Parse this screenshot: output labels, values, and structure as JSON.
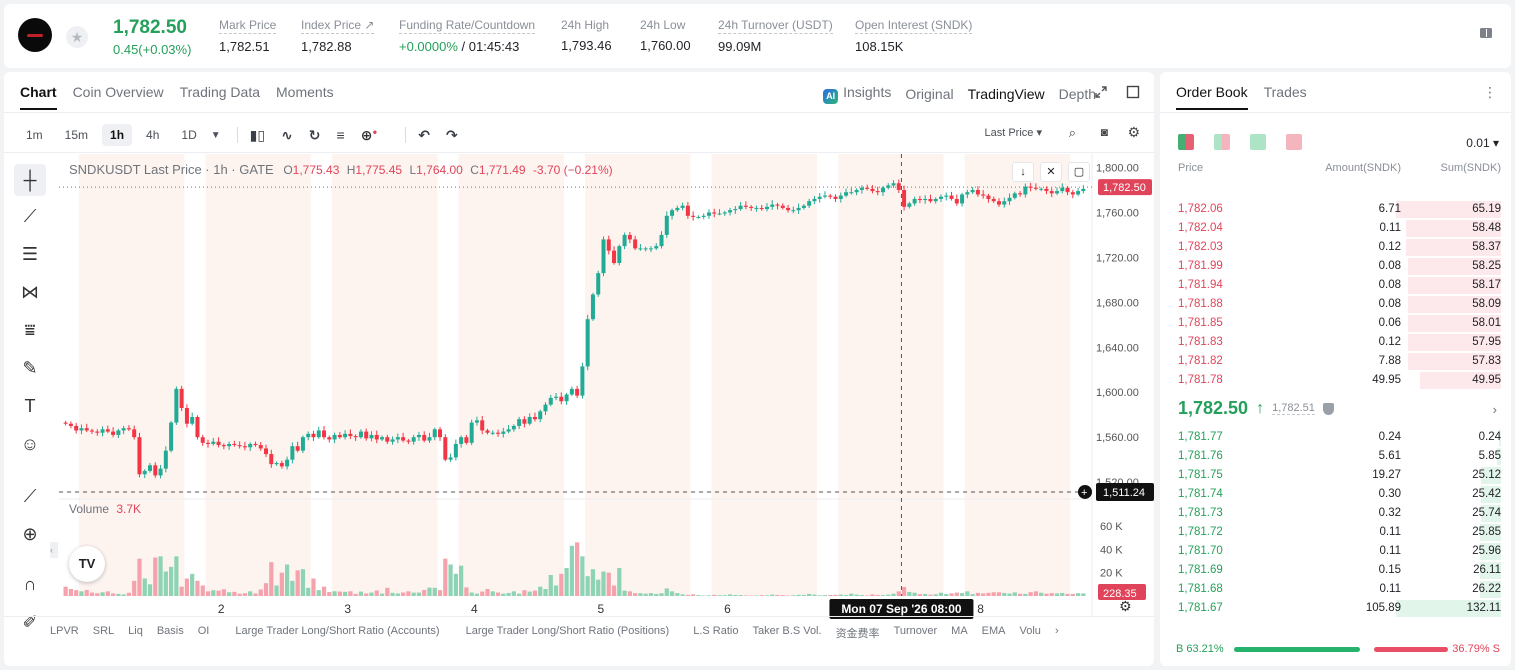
{
  "header": {
    "last_price": "1,782.50",
    "change": "0.45(+0.03%)",
    "stats": [
      {
        "label": "Mark Price",
        "value": "1,782.51"
      },
      {
        "label": "Index Price ↗",
        "value": "1,782.88"
      },
      {
        "label": "Funding Rate/Countdown",
        "value_green": "+0.0000%",
        "value": " / 01:45:43"
      },
      {
        "label": "24h High",
        "value": "1,793.46"
      },
      {
        "label": "24h Low",
        "value": "1,760.00"
      },
      {
        "label": "24h Turnover (USDT)",
        "value": "99.09M"
      },
      {
        "label": "Open Interest (SNDK)",
        "value": "108.15K"
      }
    ]
  },
  "chart_panel": {
    "tabs": [
      "Chart",
      "Coin Overview",
      "Trading Data",
      "Moments"
    ],
    "view_tabs": [
      "Insights",
      "Original",
      "TradingView",
      "Depth"
    ],
    "intervals": [
      "1m",
      "15m",
      "1h",
      "4h",
      "1D"
    ],
    "price_type": "Last Price ▾",
    "legend": {
      "symbol": "SNDKUSDT Last Price · 1h · GATE",
      "o_label": "O",
      "o": "1,775.43",
      "h_label": "H",
      "h": "1,775.45",
      "l_label": "L",
      "l": "1,764.00",
      "c_label": "C",
      "c": "1,771.49",
      "chg": "-3.70 (−0.21%)"
    },
    "volume_label": "Volume",
    "volume_value": "3.7K",
    "last_price_tag": "1,782.50",
    "cursor_price_tag": "1,511.24",
    "volume_tag": "228.35",
    "cursor_time": "Mon 07 Sep '26   08:00",
    "bottom_links": [
      "LPVR",
      "SRL",
      "Liq",
      "Basis",
      "OI",
      "Large Trader Long/Short Ratio (Accounts)",
      "Large Trader Long/Short Ratio (Positions)",
      "L.S Ratio",
      "Taker B.S Vol.",
      "资金费率",
      "Turnover",
      "MA",
      "EMA",
      "Volu"
    ]
  },
  "chart_data": {
    "type": "candlestick",
    "interval": "1h",
    "x_ticks": [
      "2",
      "3",
      "4",
      "5",
      "6",
      "8"
    ],
    "price_ticks": [
      1800,
      1760,
      1720,
      1680,
      1640,
      1600,
      1560,
      1520
    ],
    "volume_ticks": [
      "60 K",
      "40 K",
      "20 K"
    ],
    "ylim": [
      1505,
      1812
    ],
    "volume_max": 60000,
    "up_color": "#22ab94",
    "down_color": "#f23645",
    "closes": [
      1572,
      1570,
      1566,
      1568,
      1566,
      1565,
      1564,
      1567,
      1565,
      1562,
      1566,
      1568,
      1567,
      1560,
      1527,
      1530,
      1535,
      1526,
      1532,
      1548,
      1573,
      1603,
      1586,
      1572,
      1578,
      1560,
      1555,
      1554,
      1556,
      1553,
      1552,
      1554,
      1553,
      1552,
      1551,
      1554,
      1553,
      1550,
      1545,
      1536,
      1537,
      1534,
      1540,
      1552,
      1548,
      1560,
      1563,
      1560,
      1566,
      1560,
      1558,
      1562,
      1560,
      1563,
      1561,
      1560,
      1565,
      1559,
      1562,
      1558,
      1560,
      1556,
      1558,
      1560,
      1557,
      1556,
      1560,
      1562,
      1557,
      1560,
      1567,
      1560,
      1540,
      1542,
      1554,
      1560,
      1555,
      1573,
      1575,
      1566,
      1564,
      1564,
      1563,
      1565,
      1567,
      1570,
      1576,
      1572,
      1578,
      1576,
      1583,
      1589,
      1595,
      1596,
      1592,
      1598,
      1603,
      1597,
      1623,
      1665,
      1687,
      1706,
      1736,
      1726,
      1715,
      1730,
      1740,
      1736,
      1728,
      1728,
      1728,
      1728,
      1730,
      1740,
      1757,
      1762,
      1764,
      1766,
      1757,
      1756,
      1756,
      1757,
      1760,
      1759,
      1759,
      1760,
      1762,
      1763,
      1766,
      1765,
      1764,
      1764,
      1763,
      1765,
      1767,
      1766,
      1764,
      1762,
      1762,
      1764,
      1766,
      1770,
      1772,
      1774,
      1775,
      1774,
      1772,
      1775,
      1778,
      1778,
      1780,
      1782,
      1781,
      1779,
      1778,
      1782,
      1784,
      1786,
      1780,
      1765,
      1768,
      1772,
      1771,
      1772,
      1770,
      1772,
      1774,
      1775,
      1772,
      1768,
      1776,
      1778,
      1780,
      1776,
      1775,
      1772,
      1770,
      1767,
      1770,
      1773,
      1777,
      1776,
      1783,
      1782,
      1781,
      1781,
      1779,
      1777,
      1779,
      1782,
      1778,
      1776,
      1779,
      1781
    ],
    "volumes": [
      8000,
      6000,
      5000,
      4000,
      5200,
      3000,
      2400,
      3200,
      4000,
      2200,
      1800,
      1400,
      2800,
      13000,
      32000,
      15000,
      10000,
      33000,
      34000,
      21000,
      25000,
      34000,
      8000,
      15000,
      19000,
      13000,
      9000,
      4000,
      5000,
      4600,
      5800,
      3200,
      3600,
      2000,
      2400,
      4000,
      2200,
      5600,
      11000,
      29000,
      9000,
      20000,
      27000,
      13000,
      22000,
      23000,
      7000,
      15000,
      5000,
      8000,
      3400,
      4100,
      3800,
      3600,
      4000,
      1800,
      3800,
      2200,
      3000,
      4700,
      2000,
      7000,
      2700,
      2200,
      3000,
      4000,
      2900,
      3000,
      5200,
      7200,
      7000,
      5000,
      32000,
      27000,
      19000,
      26000,
      7400,
      3000,
      2000,
      3800,
      6000,
      4000,
      3000,
      2000,
      2600,
      4000,
      2000,
      5000,
      3800,
      4600,
      8000,
      6000,
      18000,
      9000,
      19000,
      24000,
      43000,
      46000,
      34000,
      17000,
      23000,
      14000,
      21000,
      20000,
      9000,
      24000,
      4600,
      4000,
      2400,
      2400,
      2000,
      2500,
      1800,
      2400,
      6500,
      4000,
      2500,
      1400,
      900,
      1500,
      800,
      400,
      600,
      1000,
      700,
      700,
      1400,
      900,
      800,
      500,
      400,
      500,
      800,
      600,
      1200,
      900,
      700,
      400,
      600,
      1000,
      900,
      1800,
      1200,
      600,
      800,
      800,
      1000,
      1300,
      900,
      2000,
      1200,
      800,
      500,
      1400,
      900,
      800,
      1200,
      2000,
      4000,
      7800,
      3500,
      2800,
      1600,
      1800,
      1100,
      1500,
      2800,
      1700,
      2300,
      2900,
      2500,
      4000,
      1600,
      2700,
      2200,
      2700,
      3200,
      3200,
      2600,
      2100,
      3100,
      1900,
      1800,
      3300,
      4000,
      2800,
      2000,
      2500,
      2200,
      2600,
      1800,
      1800,
      2400,
      2200
    ]
  },
  "order_book": {
    "tabs": [
      "Order Book",
      "Trades"
    ],
    "tick": "0.01 ▾",
    "headers": {
      "price": "Price",
      "amount": "Amount(SNDK)",
      "sum": "Sum(SNDK)"
    },
    "asks": [
      {
        "price": "1,782.06",
        "amount": "6.71",
        "sum": "65.19",
        "depth": 1.0
      },
      {
        "price": "1,782.04",
        "amount": "0.11",
        "sum": "58.48",
        "depth": 0.9
      },
      {
        "price": "1,782.03",
        "amount": "0.12",
        "sum": "58.37",
        "depth": 0.9
      },
      {
        "price": "1,781.99",
        "amount": "0.08",
        "sum": "58.25",
        "depth": 0.89
      },
      {
        "price": "1,781.94",
        "amount": "0.08",
        "sum": "58.17",
        "depth": 0.89
      },
      {
        "price": "1,781.88",
        "amount": "0.08",
        "sum": "58.09",
        "depth": 0.89
      },
      {
        "price": "1,781.85",
        "amount": "0.06",
        "sum": "58.01",
        "depth": 0.89
      },
      {
        "price": "1,781.83",
        "amount": "0.12",
        "sum": "57.95",
        "depth": 0.89
      },
      {
        "price": "1,781.82",
        "amount": "7.88",
        "sum": "57.83",
        "depth": 0.89
      },
      {
        "price": "1,781.78",
        "amount": "49.95",
        "sum": "49.95",
        "depth": 0.77
      }
    ],
    "mid": {
      "price": "1,782.50",
      "arrow": "↑",
      "mark": "1,782.51"
    },
    "bids": [
      {
        "price": "1,781.77",
        "amount": "0.24",
        "sum": "0.24",
        "depth": 0.002
      },
      {
        "price": "1,781.76",
        "amount": "5.61",
        "sum": "5.85",
        "depth": 0.04
      },
      {
        "price": "1,781.75",
        "amount": "19.27",
        "sum": "25.12",
        "depth": 0.19
      },
      {
        "price": "1,781.74",
        "amount": "0.30",
        "sum": "25.42",
        "depth": 0.19
      },
      {
        "price": "1,781.73",
        "amount": "0.32",
        "sum": "25.74",
        "depth": 0.19
      },
      {
        "price": "1,781.72",
        "amount": "0.11",
        "sum": "25.85",
        "depth": 0.2
      },
      {
        "price": "1,781.70",
        "amount": "0.11",
        "sum": "25.96",
        "depth": 0.2
      },
      {
        "price": "1,781.69",
        "amount": "0.15",
        "sum": "26.11",
        "depth": 0.2
      },
      {
        "price": "1,781.68",
        "amount": "0.11",
        "sum": "26.22",
        "depth": 0.2
      },
      {
        "price": "1,781.67",
        "amount": "105.89",
        "sum": "132.11",
        "depth": 1.0
      }
    ],
    "buy_ratio_label": "B 63.21%",
    "sell_ratio_label": "36.79% S",
    "buy_ratio": 0.6321
  }
}
